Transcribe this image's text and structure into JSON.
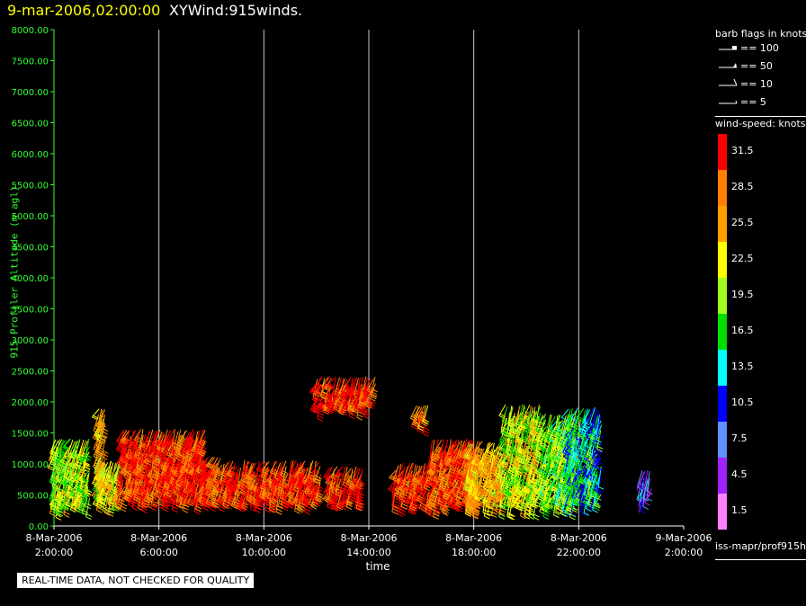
{
  "header": {
    "datetime": "9-mar-2006,02:00:00",
    "title": "XYWind:915winds."
  },
  "axes": {
    "ylabel": "915 Profiler Altitude (m agl)",
    "xlabel": "time",
    "yticks": [
      "0.00",
      "500.00",
      "1000.00",
      "1500.00",
      "2000.00",
      "2500.00",
      "3000.00",
      "3500.00",
      "4000.00",
      "4500.00",
      "5000.00",
      "5500.00",
      "6000.00",
      "6500.00",
      "7000.00",
      "7500.00",
      "8000.00"
    ],
    "xticks": [
      {
        "date": "8-Mar-2006",
        "time": "2:00:00"
      },
      {
        "date": "8-Mar-2006",
        "time": "6:00:00"
      },
      {
        "date": "8-Mar-2006",
        "time": "10:00:00"
      },
      {
        "date": "8-Mar-2006",
        "time": "14:00:00"
      },
      {
        "date": "8-Mar-2006",
        "time": "18:00:00"
      },
      {
        "date": "8-Mar-2006",
        "time": "22:00:00"
      },
      {
        "date": "9-Mar-2006",
        "time": "2:00:00"
      }
    ]
  },
  "legend": {
    "barb_header": "barb flags in knots",
    "barbs": [
      "== 100",
      "== 50",
      "== 10",
      "== 5"
    ],
    "speed_header": "wind-speed: knots",
    "levels": [
      {
        "label": "31.5",
        "color": "#ff0000"
      },
      {
        "label": "28.5",
        "color": "#ff8000"
      },
      {
        "label": "25.5",
        "color": "#ffa000"
      },
      {
        "label": "22.5",
        "color": "#ffff00"
      },
      {
        "label": "19.5",
        "color": "#a0ff20"
      },
      {
        "label": "16.5",
        "color": "#00e000"
      },
      {
        "label": "13.5",
        "color": "#00ffff"
      },
      {
        "label": "10.5",
        "color": "#0000ff"
      },
      {
        "label": "7.5",
        "color": "#6090ff"
      },
      {
        "label": "4.5",
        "color": "#a020ff"
      },
      {
        "label": "1.5",
        "color": "#ff80ff"
      }
    ],
    "source": "iss-mapr/prof915h"
  },
  "notice": "REAL-TIME DATA, NOT CHECKED FOR QUALITY",
  "chart_data": {
    "type": "scatter",
    "x_unit": "hours since 8-Mar-2006 0:00",
    "xlim": [
      2,
      26
    ],
    "ylim": [
      0,
      8000
    ],
    "grid": "vertical lines at x ticks",
    "clusters": [
      {
        "t_start": 2.0,
        "t_end": 3.4,
        "alt_low": 450,
        "alt_high": 1450,
        "speed": 20
      },
      {
        "t_start": 3.7,
        "t_end": 4.0,
        "alt_low": 700,
        "alt_high": 1950,
        "speed": 25
      },
      {
        "t_start": 3.7,
        "t_end": 4.6,
        "alt_low": 500,
        "alt_high": 1100,
        "speed": 22
      },
      {
        "t_start": 4.6,
        "t_end": 7.8,
        "alt_low": 550,
        "alt_high": 1600,
        "speed": 31
      },
      {
        "t_start": 7.8,
        "t_end": 8.6,
        "alt_low": 550,
        "alt_high": 1150,
        "speed": 31
      },
      {
        "t_start": 8.6,
        "t_end": 12.2,
        "alt_low": 550,
        "alt_high": 1100,
        "speed": 31
      },
      {
        "t_start": 12.5,
        "t_end": 13.8,
        "alt_low": 550,
        "alt_high": 1000,
        "speed": 31
      },
      {
        "t_start": 12.0,
        "t_end": 14.3,
        "alt_low": 2050,
        "alt_high": 2450,
        "speed": 31
      },
      {
        "t_start": 15.0,
        "t_end": 16.4,
        "alt_low": 500,
        "alt_high": 1050,
        "speed": 31
      },
      {
        "t_start": 15.8,
        "t_end": 16.3,
        "alt_low": 1800,
        "alt_high": 2000,
        "speed": 28
      },
      {
        "t_start": 16.4,
        "t_end": 18.2,
        "alt_low": 450,
        "alt_high": 1450,
        "speed": 30
      },
      {
        "t_start": 17.8,
        "t_end": 19.2,
        "alt_low": 450,
        "alt_high": 1400,
        "speed": 25
      },
      {
        "t_start": 19.2,
        "t_end": 20.6,
        "alt_low": 450,
        "alt_high": 2000,
        "speed": 21
      },
      {
        "t_start": 20.6,
        "t_end": 22.0,
        "alt_low": 450,
        "alt_high": 1850,
        "speed": 19
      },
      {
        "t_start": 21.6,
        "t_end": 22.9,
        "alt_low": 500,
        "alt_high": 1950,
        "speed": 14
      },
      {
        "t_start": 24.4,
        "t_end": 24.8,
        "alt_low": 500,
        "alt_high": 950,
        "speed": 8
      }
    ]
  }
}
